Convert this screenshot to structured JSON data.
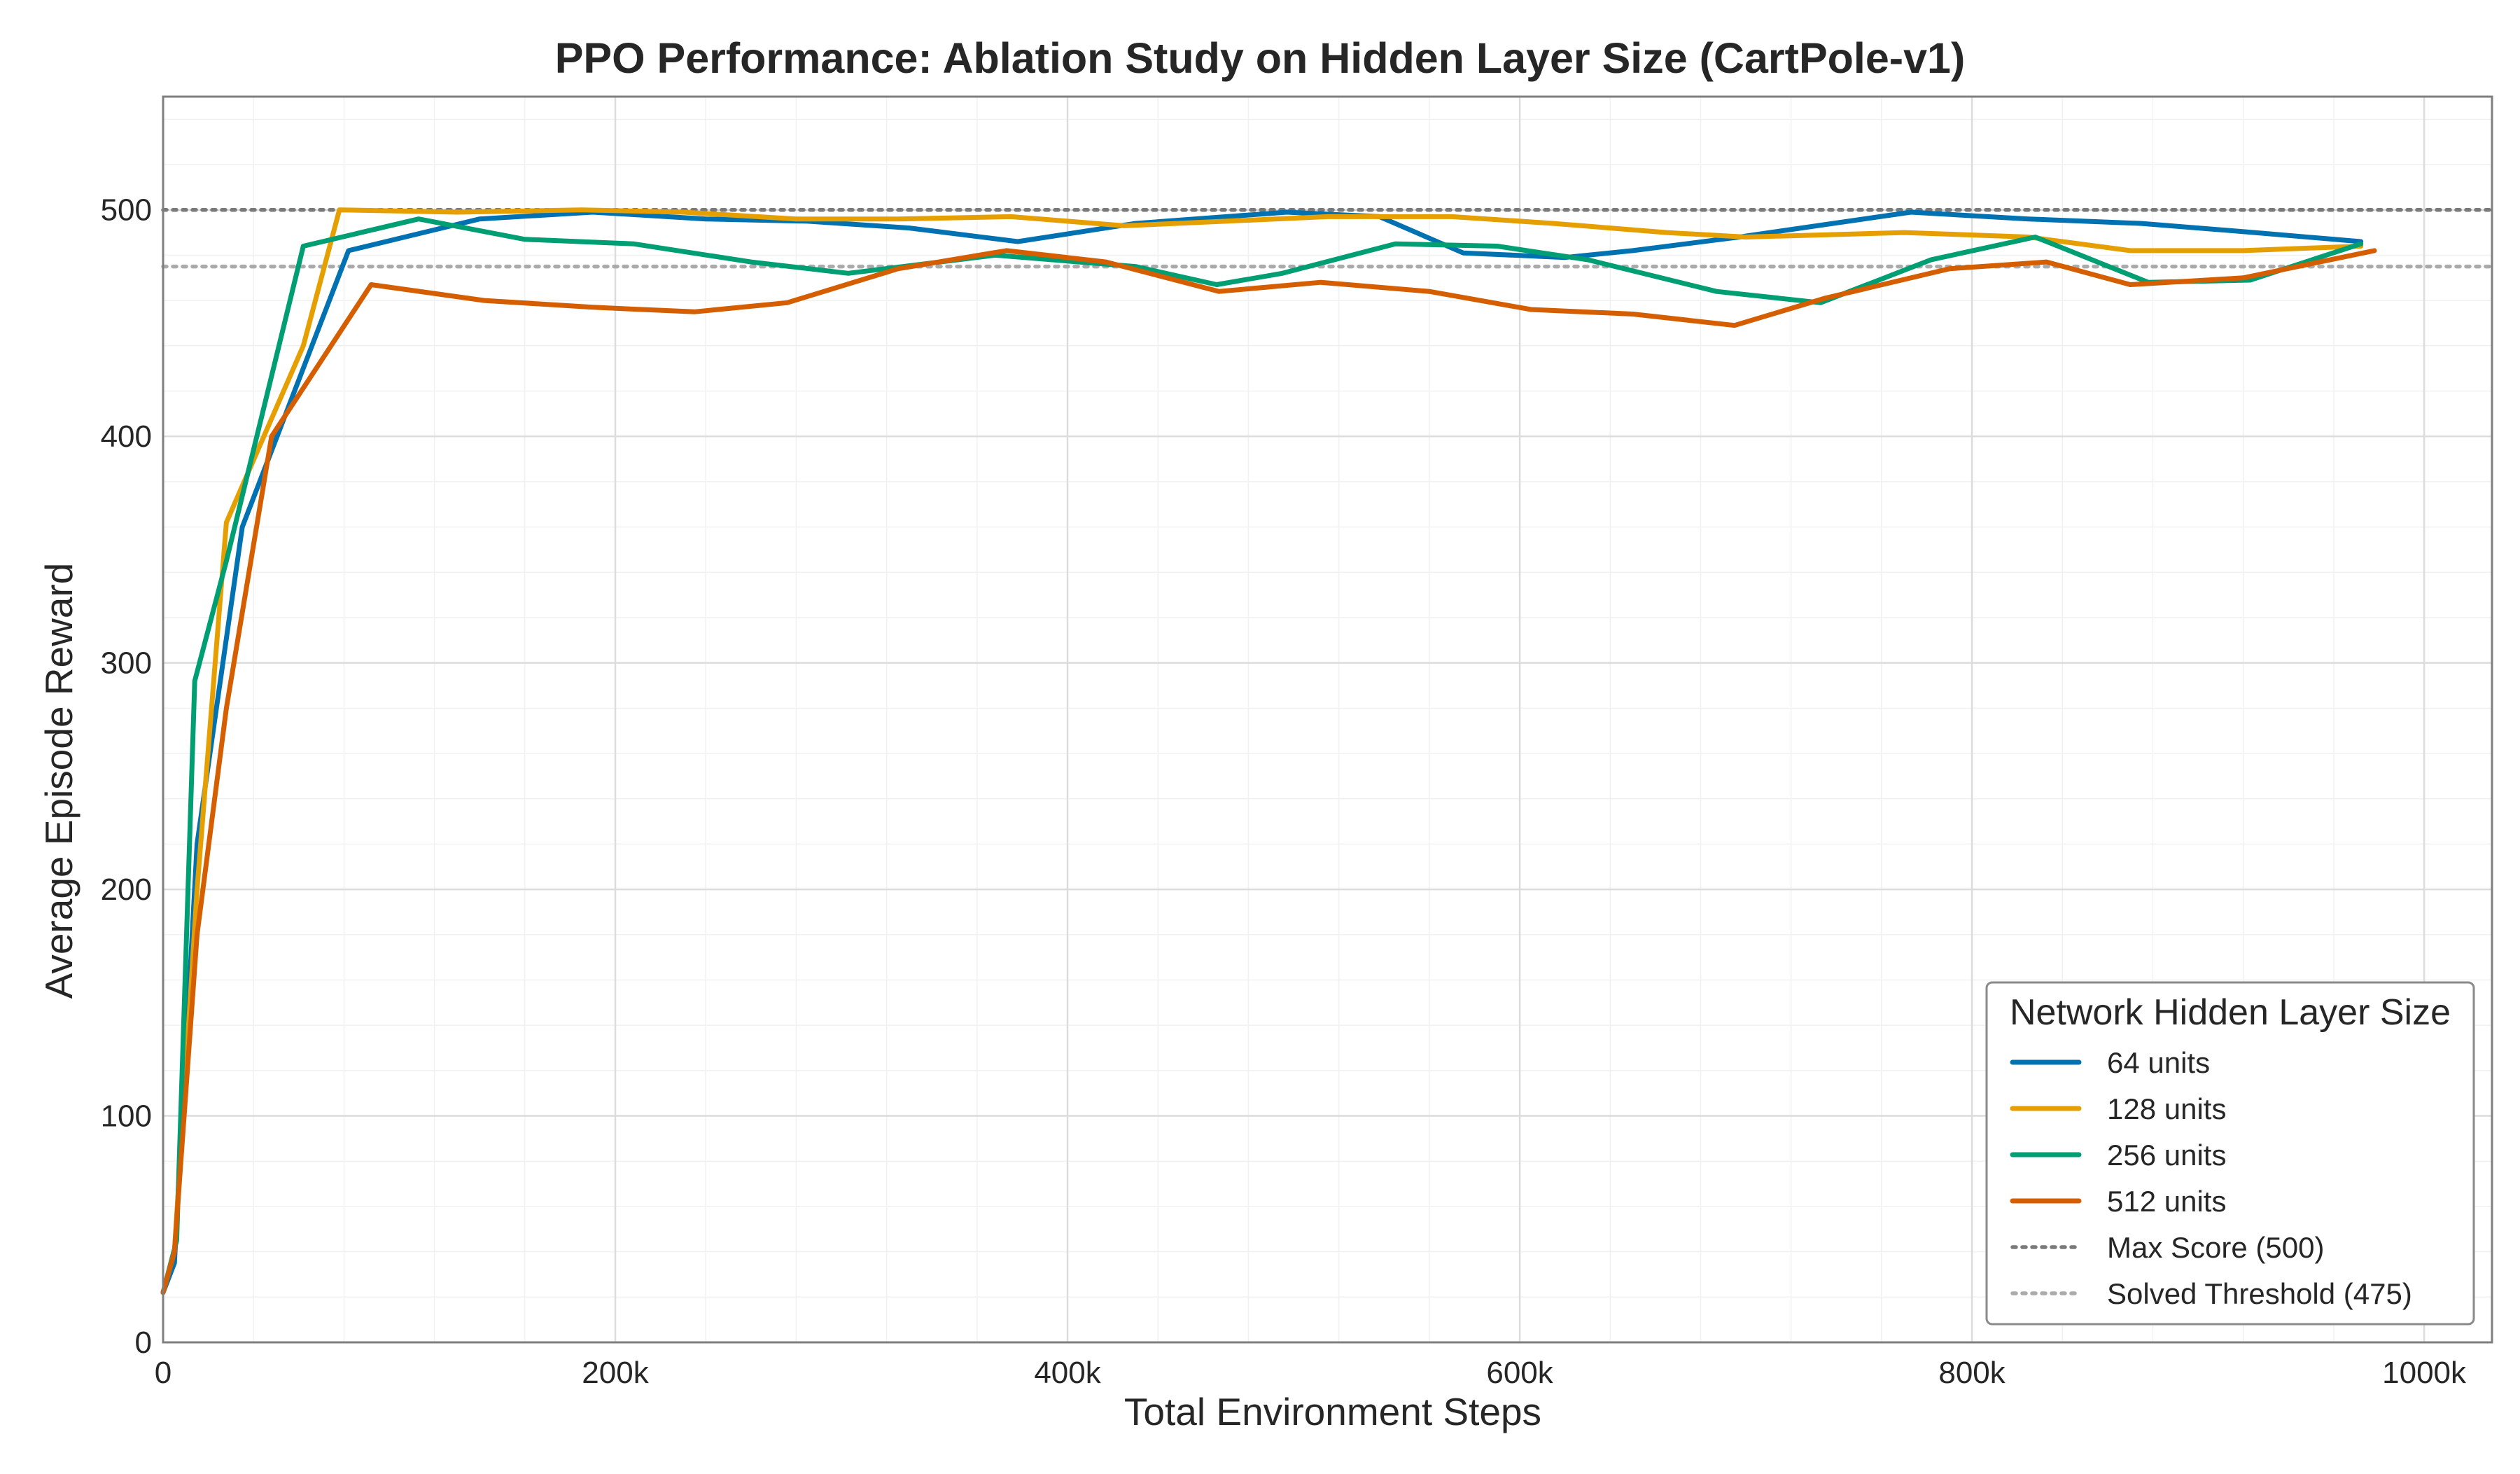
{
  "chart_data": {
    "type": "line",
    "title": "PPO Performance: Ablation Study on Hidden Layer Size (CartPole-v1)",
    "xlabel": "Total Environment Steps",
    "ylabel": "Average Episode Reward",
    "xlim": [
      0,
      1030000
    ],
    "ylim": [
      0,
      550
    ],
    "x_ticks": [
      0,
      200000,
      400000,
      600000,
      800000,
      1000000
    ],
    "x_tick_labels": [
      "0",
      "200k",
      "400k",
      "600k",
      "800k",
      "1000k"
    ],
    "y_ticks": [
      0,
      100,
      200,
      300,
      400,
      500
    ],
    "y_tick_labels": [
      "0",
      "100",
      "200",
      "300",
      "400",
      "500"
    ],
    "grid": true,
    "legend": {
      "title": "Network Hidden Layer Size",
      "placement": "lower-right"
    },
    "series": [
      {
        "name": "64 units",
        "color": "#0072b2",
        "style": "solid",
        "x": [
          0,
          5000,
          15000,
          35000,
          82000,
          140000,
          190000,
          240000,
          285000,
          330000,
          378000,
          430000,
          497000,
          538000,
          575000,
          620000,
          650000,
          697000,
          773000,
          825000,
          875000,
          925000,
          972000
        ],
        "y": [
          22,
          35,
          220,
          360,
          482,
          496,
          499,
          496,
          495,
          492,
          486,
          494,
          499,
          497,
          481,
          479,
          482,
          488,
          499,
          496,
          494,
          490,
          486
        ]
      },
      {
        "name": "128 units",
        "color": "#e69f00",
        "style": "solid",
        "x": [
          0,
          5000,
          15000,
          28000,
          62000,
          78000,
          130000,
          185000,
          230000,
          280000,
          325000,
          375000,
          425000,
          470000,
          515000,
          570000,
          615000,
          665000,
          700000,
          770000,
          825000,
          870000,
          920000,
          972000
        ],
        "y": [
          22,
          40,
          200,
          362,
          440,
          500,
          499,
          500,
          499,
          496,
          496,
          497,
          493,
          495,
          497,
          497,
          494,
          490,
          488,
          490,
          488,
          482,
          482,
          484
        ]
      },
      {
        "name": "256 units",
        "color": "#009e73",
        "style": "solid",
        "x": [
          0,
          6000,
          14000,
          28000,
          62000,
          113000,
          160000,
          208000,
          260000,
          303000,
          368000,
          430000,
          466000,
          495000,
          545000,
          590000,
          630000,
          687000,
          733000,
          782000,
          828000,
          878000,
          923000,
          972000
        ],
        "y": [
          22,
          45,
          292,
          345,
          484,
          496,
          487,
          485,
          477,
          472,
          480,
          475,
          467,
          472,
          485,
          484,
          478,
          464,
          459,
          478,
          488,
          468,
          469,
          485
        ]
      },
      {
        "name": "512 units",
        "color": "#d55e00",
        "style": "solid",
        "x": [
          0,
          5000,
          15000,
          28000,
          48000,
          92000,
          142000,
          190000,
          235000,
          276000,
          325000,
          373000,
          417000,
          467000,
          512000,
          560000,
          605000,
          650000,
          695000,
          735000,
          790000,
          833000,
          870000,
          920000,
          978000
        ],
        "y": [
          22,
          40,
          180,
          280,
          400,
          467,
          460,
          457,
          455,
          459,
          474,
          482,
          477,
          464,
          468,
          464,
          456,
          454,
          449,
          461,
          474,
          477,
          467,
          470,
          482
        ]
      }
    ],
    "reference_lines": [
      {
        "name": "Max Score (500)",
        "y": 500,
        "color": "#7a7a7a",
        "style": "dotted"
      },
      {
        "name": "Solved Threshold (475)",
        "y": 475,
        "color": "#ababab",
        "style": "dotted"
      }
    ]
  }
}
